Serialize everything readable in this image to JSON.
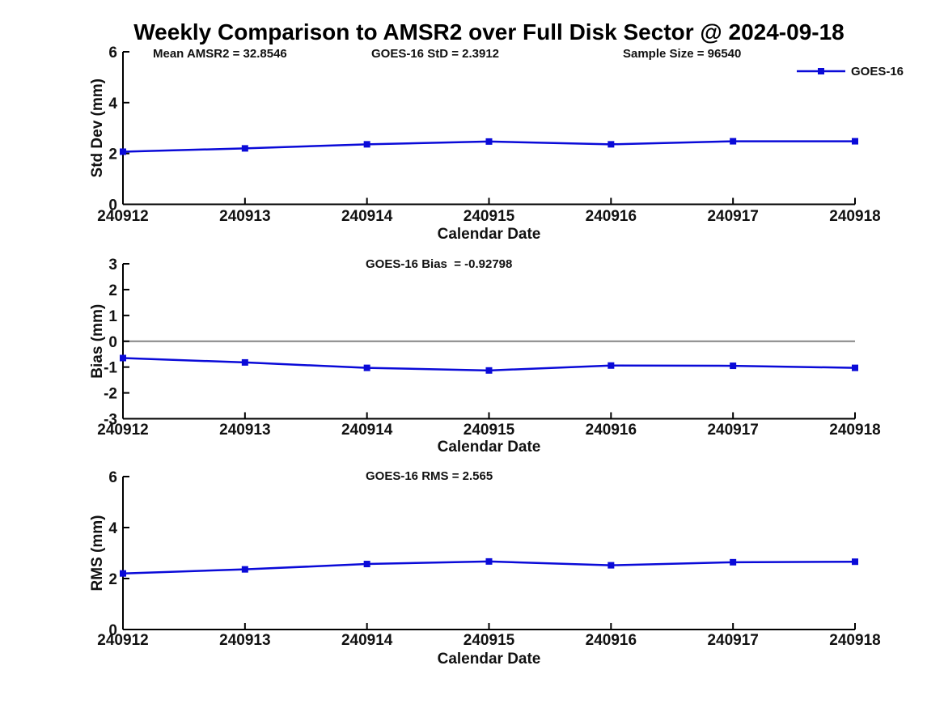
{
  "figure": {
    "title": "Weekly Comparison to AMSR2 over Full Disk Sector @ 2024-09-18",
    "colors": {
      "series": "#0a0ad8",
      "axis": "#000000",
      "text": "#111111",
      "zero_line": "#848484",
      "background": "#ffffff"
    },
    "legend": {
      "label": "GOES-16",
      "position": "northeast-outside",
      "marker": "square"
    }
  },
  "chart_data": [
    {
      "type": "line",
      "title": "",
      "ylabel": "Std Dev (mm)",
      "xlabel": "Calendar Date",
      "categories": [
        "240912",
        "240913",
        "240914",
        "240915",
        "240916",
        "240917",
        "240918"
      ],
      "series": [
        {
          "name": "GOES-16",
          "values": [
            2.07,
            2.2,
            2.36,
            2.47,
            2.36,
            2.48,
            2.48
          ],
          "color": "#0a0ad8",
          "marker": "square"
        }
      ],
      "ylim": [
        0,
        6
      ],
      "yticks": [
        "0",
        "2",
        "4",
        "6"
      ],
      "ytick_values": [
        0,
        2,
        4,
        6
      ],
      "grid": false,
      "zero_line": false,
      "show_legend": true,
      "annotations": [
        {
          "text": "Mean AMSR2 = 32.8546",
          "x": 189
        },
        {
          "text": "GOES-16 StD = 2.3912",
          "x": 459
        },
        {
          "text": "Sample Size = 96540",
          "x": 770
        }
      ]
    },
    {
      "type": "line",
      "title": "",
      "ylabel": "Bias (mm)",
      "xlabel": "Calendar Date",
      "categories": [
        "240912",
        "240913",
        "240914",
        "240915",
        "240916",
        "240917",
        "240918"
      ],
      "series": [
        {
          "name": "GOES-16",
          "values": [
            -0.65,
            -0.82,
            -1.03,
            -1.13,
            -0.94,
            -0.95,
            -1.03
          ],
          "color": "#0a0ad8",
          "marker": "square"
        }
      ],
      "ylim": [
        -3,
        3
      ],
      "yticks": [
        "-3",
        "-2",
        "-1",
        "0",
        "1",
        "2",
        "3"
      ],
      "ytick_values": [
        -3,
        -2,
        -1,
        0,
        1,
        2,
        3
      ],
      "grid": false,
      "zero_line": true,
      "show_legend": false,
      "annotations": [
        {
          "text": "GOES-16 Bias  = -0.92798",
          "x": 452
        }
      ]
    },
    {
      "type": "line",
      "title": "",
      "ylabel": "RMS (mm)",
      "xlabel": "Calendar Date",
      "categories": [
        "240912",
        "240913",
        "240914",
        "240915",
        "240916",
        "240917",
        "240918"
      ],
      "series": [
        {
          "name": "GOES-16",
          "values": [
            2.2,
            2.36,
            2.57,
            2.67,
            2.52,
            2.64,
            2.66
          ],
          "color": "#0a0ad8",
          "marker": "square"
        }
      ],
      "ylim": [
        0,
        6
      ],
      "yticks": [
        "0",
        "2",
        "4",
        "6"
      ],
      "ytick_values": [
        0,
        2,
        4,
        6
      ],
      "grid": false,
      "zero_line": false,
      "show_legend": false,
      "annotations": [
        {
          "text": "GOES-16 RMS = 2.565",
          "x": 452
        }
      ]
    }
  ]
}
